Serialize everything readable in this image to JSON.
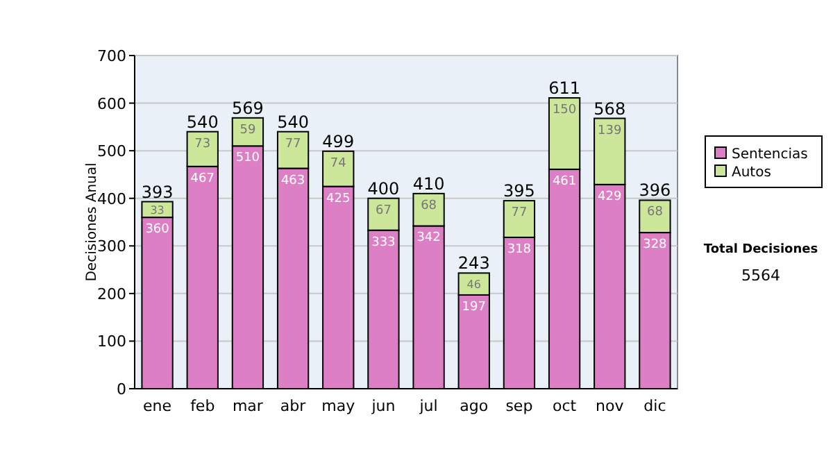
{
  "chart_data": {
    "type": "bar",
    "stacked": true,
    "ylabel": "Decisiones Anual",
    "categories": [
      "ene",
      "feb",
      "mar",
      "abr",
      "may",
      "jun",
      "jul",
      "ago",
      "sep",
      "oct",
      "nov",
      "dic"
    ],
    "series": [
      {
        "name": "Sentencias",
        "color": "#dd7fc4",
        "values": [
          360,
          467,
          510,
          463,
          425,
          333,
          342,
          197,
          318,
          461,
          429,
          328
        ]
      },
      {
        "name": "Autos",
        "color": "#cce69a",
        "values": [
          33,
          73,
          59,
          77,
          74,
          67,
          68,
          46,
          77,
          150,
          139,
          68
        ]
      }
    ],
    "totals": [
      "393",
      "540",
      "569",
      "540",
      "499",
      "400",
      "410",
      "243",
      "395",
      "611",
      "568",
      "396"
    ],
    "data_labels": true,
    "ylim": [
      0,
      700
    ],
    "yticks": [
      0,
      100,
      200,
      300,
      400,
      500,
      600,
      700
    ],
    "grid": "y",
    "legend": "right",
    "annotations": [
      "Total Decisiones",
      "5564"
    ]
  }
}
